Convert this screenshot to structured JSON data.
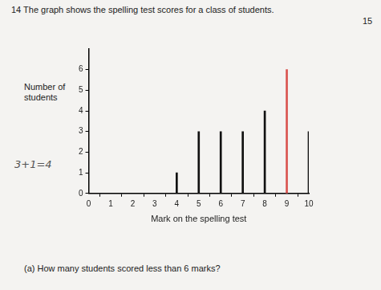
{
  "chart_data": {
    "type": "bar",
    "title": "14  The graph shows the spelling test scores for a class of students.",
    "x_label": "Mark on the spelling test",
    "y_label": "Number of students",
    "annotations": [
      "15",
      "3+1=4",
      "(a)  How many students scored less than 6 marks?"
    ],
    "x": [
      4,
      5,
      6,
      7,
      8,
      9,
      10
    ],
    "values": [
      1,
      3,
      3,
      3,
      4,
      6,
      3
    ],
    "colors": [
      "#111111",
      "#111111",
      "#111111",
      "#111111",
      "#111111",
      "#d9534f",
      "#111111"
    ],
    "xlim": [
      0,
      10
    ],
    "xticks": [
      0,
      1,
      2,
      3,
      4,
      5,
      6,
      7,
      8,
      9,
      10
    ],
    "ylim": [
      0,
      7
    ],
    "yticks": [
      0,
      1,
      2,
      3,
      4,
      5,
      6
    ],
    "grid": false
  }
}
